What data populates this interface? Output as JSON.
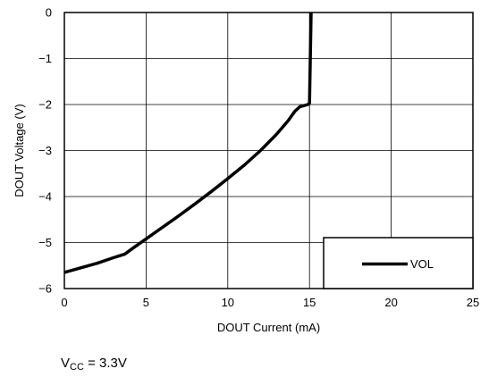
{
  "chart_data": {
    "type": "line",
    "title": "",
    "xlabel": "DOUT Current (mA)",
    "ylabel": "DOUT Voltage (V)",
    "xlim": [
      0,
      25
    ],
    "ylim": [
      -6,
      0
    ],
    "xticks": [
      0,
      5,
      10,
      15,
      20,
      25
    ],
    "yticks": [
      0,
      -1,
      -2,
      -3,
      -4,
      -5,
      -6
    ],
    "xtick_labels": [
      "0",
      "5",
      "10",
      "15",
      "20",
      "25"
    ],
    "ytick_labels": [
      "0",
      "−1",
      "−2",
      "−3",
      "−4",
      "−5",
      "−6"
    ],
    "grid": true,
    "legend_position": "bottom-right",
    "series": [
      {
        "name": "VOL",
        "color": "#000000",
        "x": [
          0,
          1,
          2,
          3,
          3.7,
          4.2,
          5,
          6,
          7,
          8,
          9,
          10,
          11,
          12,
          13,
          13.7,
          14.1,
          14.4,
          14.9,
          15.0,
          15.05,
          15.1,
          15.15
        ],
        "y": [
          -5.65,
          -5.55,
          -5.45,
          -5.33,
          -5.25,
          -5.12,
          -4.92,
          -4.67,
          -4.42,
          -4.16,
          -3.89,
          -3.61,
          -3.32,
          -3.0,
          -2.64,
          -2.35,
          -2.15,
          -2.05,
          -2.0,
          -1.97,
          -1.0,
          0.0,
          0.1
        ]
      }
    ],
    "annotation": {
      "base": "V",
      "subscript": "CC",
      "rest": " = 3.3V"
    }
  }
}
